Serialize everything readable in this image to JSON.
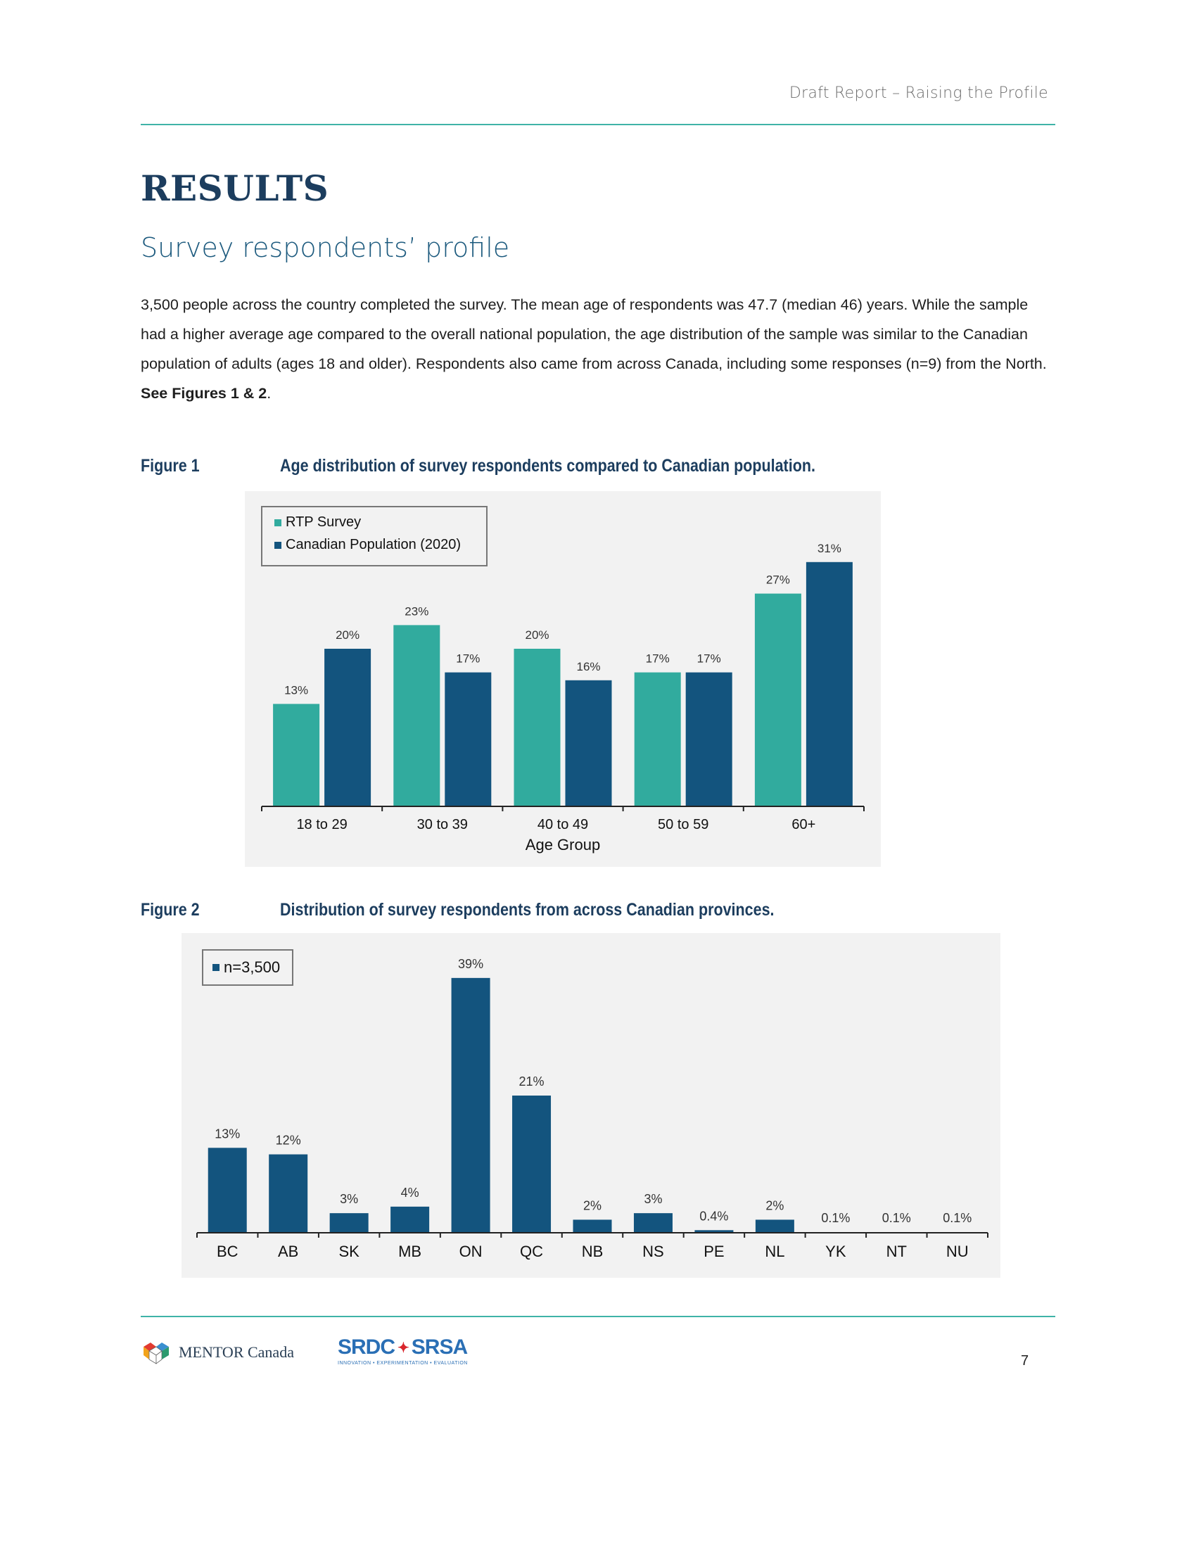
{
  "header": {
    "title": "Draft Report – Raising the Profile"
  },
  "section": {
    "title": "RESULTS",
    "subtitle": "Survey respondents’ profile"
  },
  "body": {
    "paragraph": "3,500 people across the country completed the survey. The mean age of respondents was 47.7 (median 46) years. While the sample had a higher average age compared to the overall national population, the age distribution of the sample was similar to the Canadian population of adults (ages 18 and older). Respondents also came from across Canada, including some responses (n=9) from the North.",
    "ref_bold": "See Figures 1 & 2",
    "ref_tail": "."
  },
  "figure1": {
    "label": "Figure 1",
    "title": "Age distribution of survey respondents compared to Canadian population."
  },
  "figure2": {
    "label": "Figure 2",
    "title": "Distribution of survey respondents from across Canadian provinces."
  },
  "chart_data": [
    {
      "type": "bar",
      "categories": [
        "18 to 29",
        "30 to 39",
        "40 to 49",
        "50 to 59",
        "60+"
      ],
      "xlabel": "Age Group",
      "ylabel": "",
      "ylim": [
        0,
        35
      ],
      "legend_position": "top-left",
      "series": [
        {
          "name": "RTP Survey",
          "color": "#31ab9e",
          "values": [
            13,
            23,
            20,
            17,
            27
          ],
          "labels": [
            "13%",
            "23%",
            "20%",
            "17%",
            "27%"
          ]
        },
        {
          "name": "Canadian Population (2020)",
          "color": "#13547e",
          "values": [
            20,
            17,
            16,
            17,
            31
          ],
          "labels": [
            "20%",
            "17%",
            "16%",
            "17%",
            "31%"
          ]
        }
      ]
    },
    {
      "type": "bar",
      "categories": [
        "BC",
        "AB",
        "SK",
        "MB",
        "ON",
        "QC",
        "NB",
        "NS",
        "PE",
        "NL",
        "YK",
        "NT",
        "NU"
      ],
      "xlabel": "",
      "ylabel": "",
      "ylim": [
        0,
        42
      ],
      "legend_position": "top-left",
      "series": [
        {
          "name": "n=3,500",
          "color": "#13547e",
          "values": [
            13,
            12,
            3,
            4,
            39,
            21,
            2,
            3,
            0.4,
            2,
            0.1,
            0.1,
            0.1
          ],
          "labels": [
            "13%",
            "12%",
            "3%",
            "4%",
            "39%",
            "21%",
            "2%",
            "3%",
            "0.4%",
            "2%",
            "0.1%",
            "0.1%",
            "0.1%"
          ]
        }
      ]
    }
  ],
  "footer": {
    "mentor_name": "MENTOR Canada",
    "srdc_left": "SRDC",
    "srdc_right": "SRSA",
    "srdc_tagline": "INNOVATION • EXPERIMENTATION • EVALUATION",
    "page_number": "7"
  }
}
